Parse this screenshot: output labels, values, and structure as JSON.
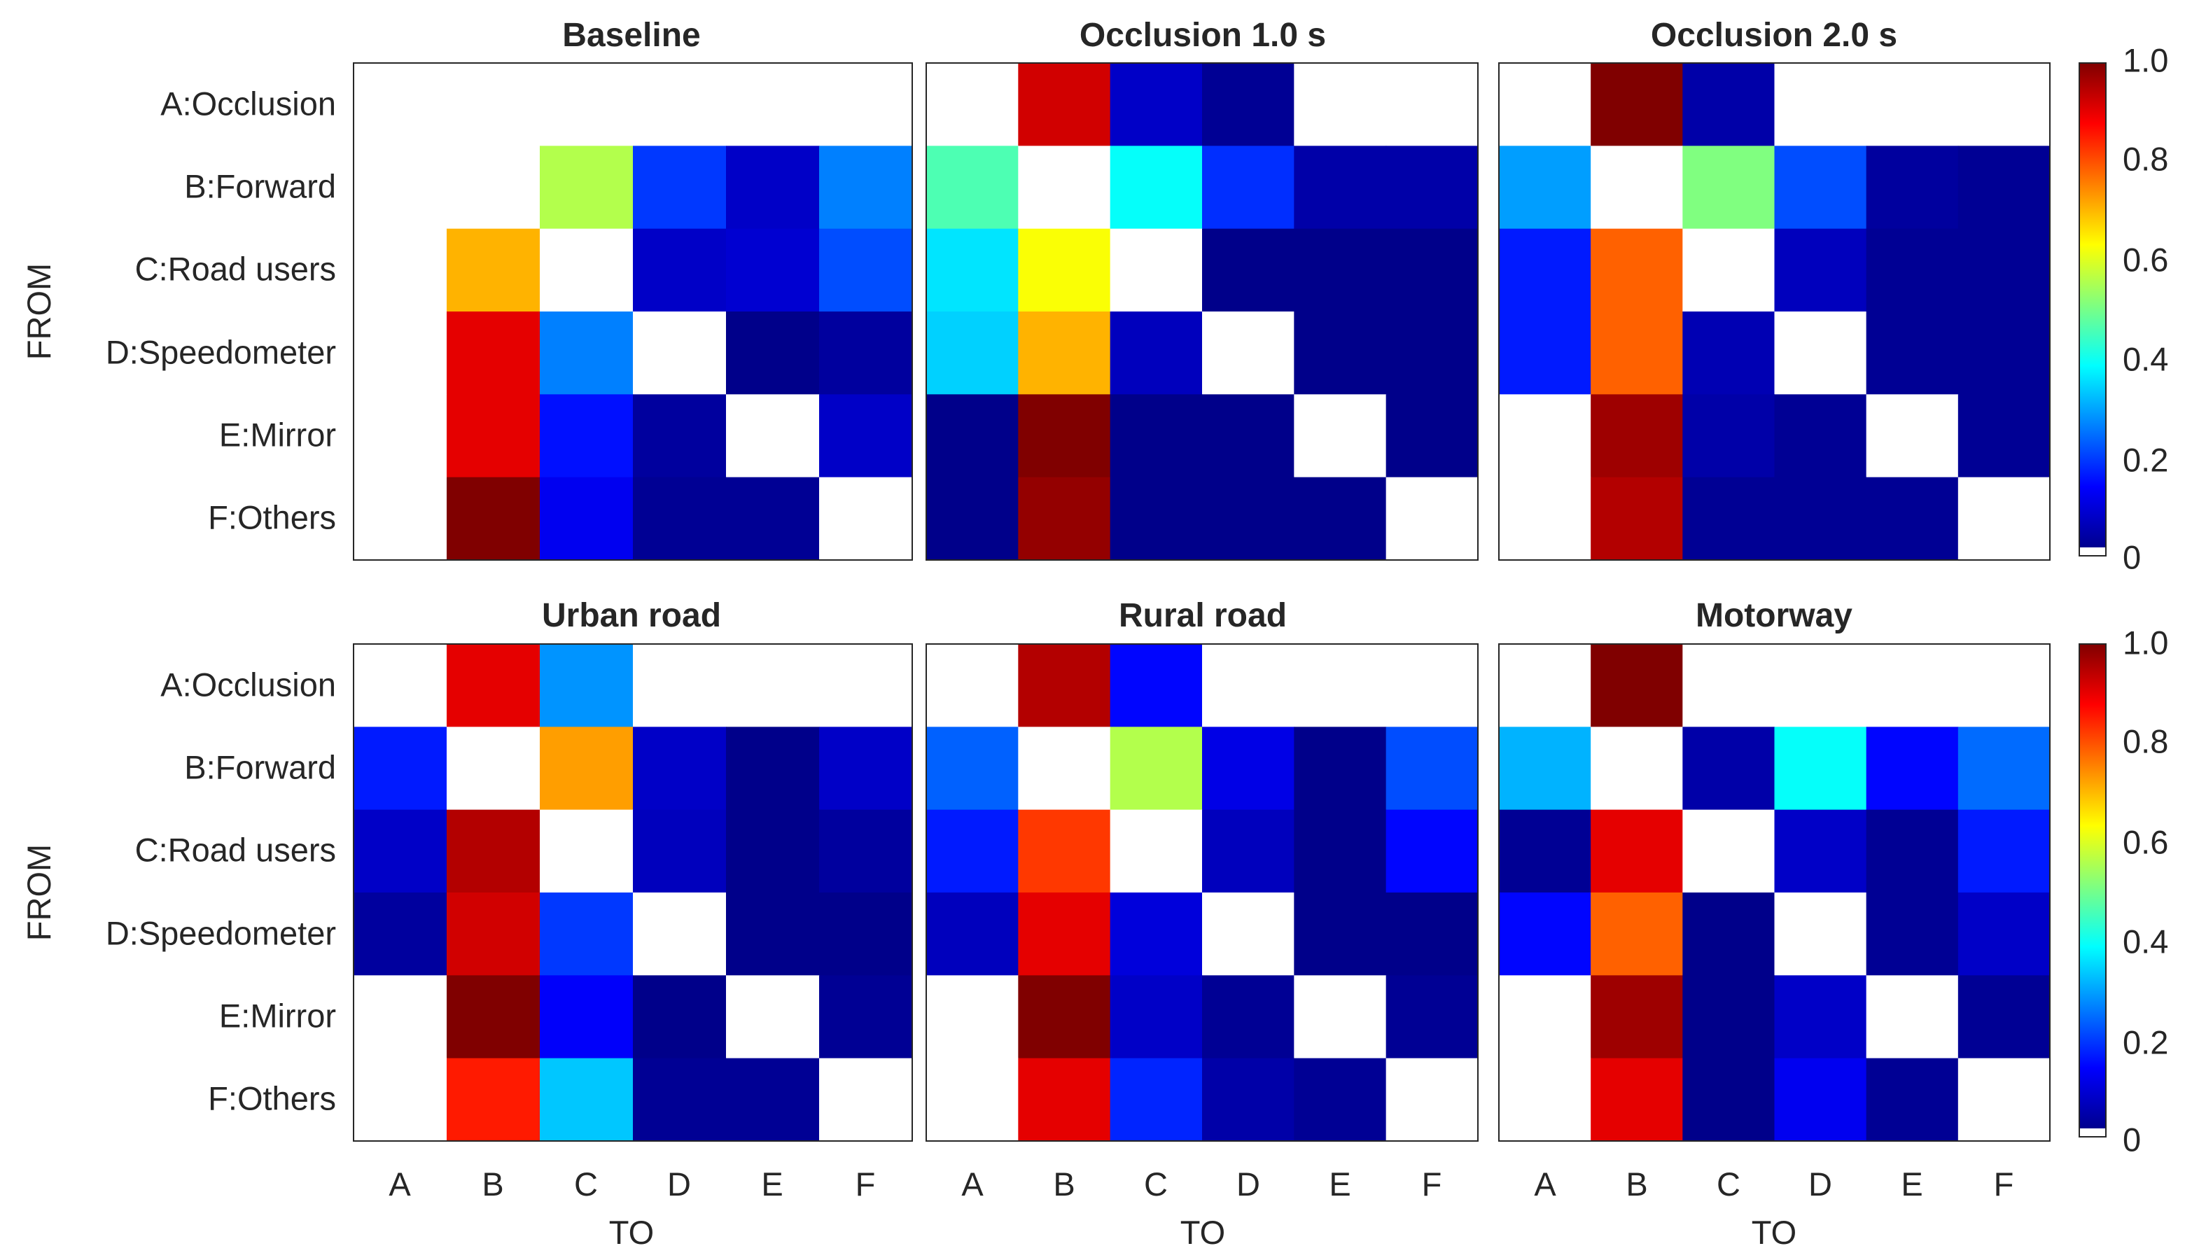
{
  "chart_data": [
    {
      "type": "heatmap",
      "title": "Baseline",
      "xlabel": "",
      "ylabel": "FROM",
      "x_categories": [
        "A",
        "B",
        "C",
        "D",
        "E",
        "F"
      ],
      "y_categories": [
        "A:Occlusion",
        "B:Forward",
        "C:Road users",
        "D:Speedometer",
        "E:Mirror",
        "F:Others"
      ],
      "values": [
        [
          null,
          null,
          null,
          null,
          null,
          null
        ],
        [
          null,
          null,
          0.55,
          0.18,
          0.07,
          0.25
        ],
        [
          null,
          0.7,
          null,
          0.07,
          0.08,
          0.2
        ],
        [
          null,
          0.9,
          0.25,
          null,
          0.01,
          0.03
        ],
        [
          null,
          0.9,
          0.14,
          0.03,
          null,
          0.07
        ],
        [
          null,
          1.0,
          0.11,
          0.02,
          0.02,
          null
        ]
      ],
      "zlim": [
        0,
        1
      ]
    },
    {
      "type": "heatmap",
      "title": "Occlusion 1.0 s",
      "xlabel": "",
      "ylabel": "",
      "x_categories": [
        "A",
        "B",
        "C",
        "D",
        "E",
        "F"
      ],
      "y_categories": [
        "A:Occlusion",
        "B:Forward",
        "C:Road users",
        "D:Speedometer",
        "E:Mirror",
        "F:Others"
      ],
      "values": [
        [
          null,
          0.92,
          0.07,
          0.02,
          null,
          null
        ],
        [
          0.45,
          null,
          0.38,
          0.17,
          0.04,
          0.04
        ],
        [
          0.35,
          0.62,
          null,
          0.01,
          0.01,
          0.01
        ],
        [
          0.33,
          0.7,
          0.06,
          null,
          0.01,
          0.01
        ],
        [
          0.01,
          1.0,
          0.01,
          0.01,
          null,
          0.01
        ],
        [
          0.01,
          0.98,
          0.01,
          0.01,
          0.01,
          null
        ]
      ],
      "zlim": [
        0,
        1
      ]
    },
    {
      "type": "heatmap",
      "title": "Occlusion 2.0 s",
      "xlabel": "",
      "ylabel": "",
      "x_categories": [
        "A",
        "B",
        "C",
        "D",
        "E",
        "F"
      ],
      "y_categories": [
        "A:Occlusion",
        "B:Forward",
        "C:Road users",
        "D:Speedometer",
        "E:Mirror",
        "F:Others"
      ],
      "values": [
        [
          null,
          1.0,
          0.04,
          null,
          null,
          null
        ],
        [
          0.28,
          null,
          0.5,
          0.2,
          0.03,
          0.02
        ],
        [
          0.15,
          0.78,
          null,
          0.06,
          0.02,
          0.02
        ],
        [
          0.15,
          0.78,
          0.05,
          null,
          0.02,
          0.02
        ],
        [
          null,
          0.97,
          0.04,
          0.02,
          null,
          0.02
        ],
        [
          null,
          0.95,
          0.02,
          0.02,
          0.02,
          null
        ]
      ],
      "zlim": [
        0,
        1
      ]
    },
    {
      "type": "heatmap",
      "title": "Urban road",
      "xlabel": "TO",
      "ylabel": "FROM",
      "x_categories": [
        "A",
        "B",
        "C",
        "D",
        "E",
        "F"
      ],
      "y_categories": [
        "A:Occlusion",
        "B:Forward",
        "C:Road users",
        "D:Speedometer",
        "E:Mirror",
        "F:Others"
      ],
      "values": [
        [
          null,
          0.9,
          0.27,
          null,
          null,
          null
        ],
        [
          0.15,
          null,
          0.72,
          0.07,
          0.01,
          0.07
        ],
        [
          0.07,
          0.95,
          null,
          0.06,
          0.01,
          0.03
        ],
        [
          0.03,
          0.92,
          0.18,
          null,
          0.01,
          0.01
        ],
        [
          null,
          1.0,
          0.12,
          0.01,
          null,
          0.02
        ],
        [
          null,
          0.85,
          0.32,
          0.02,
          0.02,
          null
        ]
      ],
      "zlim": [
        0,
        1
      ]
    },
    {
      "type": "heatmap",
      "title": "Rural road",
      "xlabel": "TO",
      "ylabel": "",
      "x_categories": [
        "A",
        "B",
        "C",
        "D",
        "E",
        "F"
      ],
      "y_categories": [
        "A:Occlusion",
        "B:Forward",
        "C:Road users",
        "D:Speedometer",
        "E:Mirror",
        "F:Others"
      ],
      "values": [
        [
          null,
          0.95,
          0.13,
          null,
          null,
          null
        ],
        [
          0.22,
          null,
          0.55,
          0.1,
          0.01,
          0.2
        ],
        [
          0.15,
          0.82,
          null,
          0.06,
          0.01,
          0.13
        ],
        [
          0.06,
          0.9,
          0.09,
          null,
          0.01,
          0.01
        ],
        [
          null,
          1.0,
          0.07,
          0.02,
          null,
          0.02
        ],
        [
          null,
          0.9,
          0.16,
          0.04,
          0.02,
          null
        ]
      ],
      "zlim": [
        0,
        1
      ]
    },
    {
      "type": "heatmap",
      "title": "Motorway",
      "xlabel": "TO",
      "ylabel": "",
      "x_categories": [
        "A",
        "B",
        "C",
        "D",
        "E",
        "F"
      ],
      "y_categories": [
        "A:Occlusion",
        "B:Forward",
        "C:Road users",
        "D:Speedometer",
        "E:Mirror",
        "F:Others"
      ],
      "values": [
        [
          null,
          1.0,
          null,
          null,
          null,
          null
        ],
        [
          0.3,
          null,
          0.04,
          0.38,
          0.13,
          0.23
        ],
        [
          0.02,
          0.9,
          null,
          0.07,
          0.02,
          0.15
        ],
        [
          0.13,
          0.78,
          0.01,
          null,
          0.02,
          0.07
        ],
        [
          null,
          0.97,
          0.01,
          0.07,
          null,
          0.02
        ],
        [
          null,
          0.9,
          0.01,
          0.11,
          0.02,
          null
        ]
      ],
      "zlim": [
        0,
        1
      ]
    }
  ],
  "colorbar": {
    "colormap": "jet",
    "ticks": [
      "0",
      "0.2",
      "0.4",
      "0.6",
      "0.8",
      "1.0"
    ],
    "missing_color": "#ffffff"
  }
}
